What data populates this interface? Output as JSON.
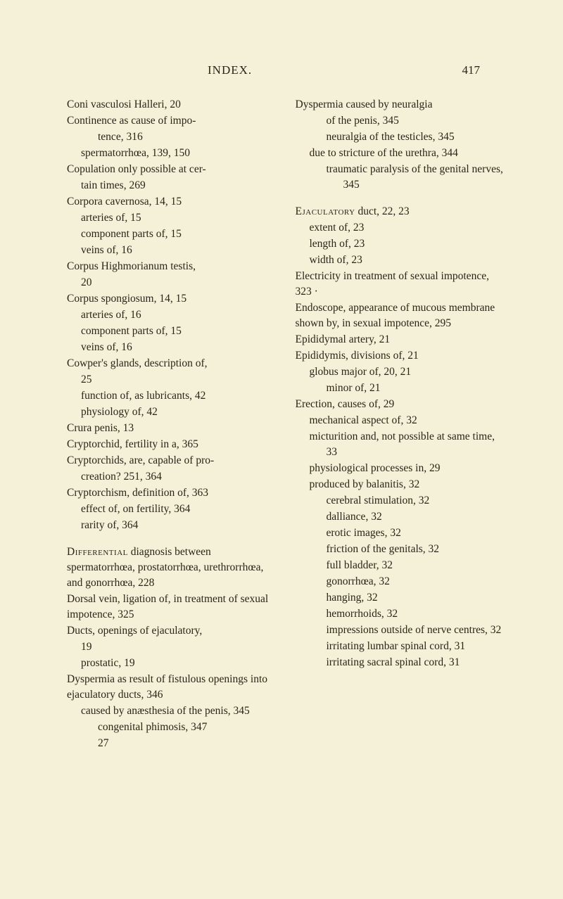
{
  "header": {
    "title": "INDEX.",
    "page": "417"
  },
  "left_column": [
    {
      "cls": "main",
      "text": "Coni vasculosi Halleri, 20"
    },
    {
      "cls": "main",
      "text": "Continence as cause of impo-"
    },
    {
      "cls": "sub2",
      "text": "tence, 316"
    },
    {
      "cls": "sub1",
      "text": "spermatorrhœa, 139, 150"
    },
    {
      "cls": "main",
      "text": "Copulation only possible at cer-"
    },
    {
      "cls": "sub1",
      "text": "tain times, 269"
    },
    {
      "cls": "main",
      "text": "Corpora cavernosa, 14, 15"
    },
    {
      "cls": "sub1",
      "text": "arteries of, 15"
    },
    {
      "cls": "sub1",
      "text": "component parts of, 15"
    },
    {
      "cls": "sub1",
      "text": "veins of, 16"
    },
    {
      "cls": "main",
      "text": "Corpus Highmorianum testis,"
    },
    {
      "cls": "sub1",
      "text": "20"
    },
    {
      "cls": "main",
      "text": "Corpus spongiosum, 14, 15"
    },
    {
      "cls": "sub1",
      "text": "arteries of, 16"
    },
    {
      "cls": "sub1",
      "text": "component parts of, 15"
    },
    {
      "cls": "sub1",
      "text": "veins of, 16"
    },
    {
      "cls": "main",
      "text": "Cowper's glands, description of,"
    },
    {
      "cls": "sub1",
      "text": "25"
    },
    {
      "cls": "sub1",
      "text": "function of, as lubricants, 42"
    },
    {
      "cls": "sub1",
      "text": "physiology of, 42"
    },
    {
      "cls": "main",
      "text": "Crura penis, 13"
    },
    {
      "cls": "main",
      "text": "Cryptorchid, fertility in a, 365"
    },
    {
      "cls": "main",
      "text": "Cryptorchids, are, capable of pro-"
    },
    {
      "cls": "sub1",
      "text": "creation? 251, 364"
    },
    {
      "cls": "main",
      "text": "Cryptorchism, definition of, 363"
    },
    {
      "cls": "sub1",
      "text": "effect of, on fertility, 364"
    },
    {
      "cls": "sub1",
      "text": "rarity of, 364"
    },
    {
      "cls": "section-gap",
      "text": ""
    },
    {
      "cls": "main",
      "text": "Differential diagnosis between spermatorrhœa, prostatorrhœa, urethrorrhœa, and gonorrhœa, 228",
      "smallcaps_first": "Differential"
    },
    {
      "cls": "main",
      "text": "Dorsal vein, ligation of, in treatment of sexual impotence, 325"
    },
    {
      "cls": "main",
      "text": "Ducts, openings of ejaculatory,"
    },
    {
      "cls": "sub1",
      "text": "19"
    },
    {
      "cls": "sub1",
      "text": "prostatic, 19"
    },
    {
      "cls": "main",
      "text": "Dyspermia as result of fistulous openings into ejaculatory ducts, 346"
    },
    {
      "cls": "sub1",
      "text": "caused by anæsthesia of the penis, 345"
    },
    {
      "cls": "sub2",
      "text": "congenital phimosis, 347"
    },
    {
      "cls": "end-col bold-num",
      "text": "27"
    }
  ],
  "right_column": [
    {
      "cls": "main",
      "text": "Dyspermia caused by neuralgia"
    },
    {
      "cls": "sub2",
      "text": "of the penis, 345"
    },
    {
      "cls": "sub2",
      "text": "neuralgia of the testicles, 345"
    },
    {
      "cls": "sub1",
      "text": "due to stricture of the urethra, 344"
    },
    {
      "cls": "sub2",
      "text": "traumatic paralysis of the genital nerves, 345"
    },
    {
      "cls": "section-gap",
      "text": ""
    },
    {
      "cls": "main",
      "text": "Ejaculatory duct, 22, 23",
      "smallcaps_first": "Ejaculatory"
    },
    {
      "cls": "sub1",
      "text": "extent of, 23"
    },
    {
      "cls": "sub1",
      "text": "length of, 23"
    },
    {
      "cls": "sub1",
      "text": "width of, 23"
    },
    {
      "cls": "main",
      "text": "Electricity in treatment of sexual impotence, 323 ·"
    },
    {
      "cls": "main",
      "text": "Endoscope, appearance of mucous membrane shown by, in sexual impotence, 295"
    },
    {
      "cls": "main",
      "text": "Epididymal artery, 21"
    },
    {
      "cls": "main",
      "text": "Epididymis, divisions of, 21"
    },
    {
      "cls": "sub1",
      "text": "globus major of, 20, 21"
    },
    {
      "cls": "sub2",
      "text": "minor of, 21"
    },
    {
      "cls": "main",
      "text": "Erection, causes of, 29"
    },
    {
      "cls": "sub1",
      "text": "mechanical aspect of, 32"
    },
    {
      "cls": "sub1",
      "text": "micturition and, not possible at same time, 33"
    },
    {
      "cls": "sub1",
      "text": "physiological processes in, 29"
    },
    {
      "cls": "sub1",
      "text": "produced by balanitis, 32"
    },
    {
      "cls": "sub2",
      "text": "cerebral stimulation, 32"
    },
    {
      "cls": "sub2",
      "text": "dalliance, 32"
    },
    {
      "cls": "sub2",
      "text": "erotic images, 32"
    },
    {
      "cls": "sub2",
      "text": "friction of the genitals, 32"
    },
    {
      "cls": "sub2",
      "text": "full bladder, 32"
    },
    {
      "cls": "sub2",
      "text": "gonorrhœa, 32"
    },
    {
      "cls": "sub2",
      "text": "hanging, 32"
    },
    {
      "cls": "sub2",
      "text": "hemorrhoids, 32"
    },
    {
      "cls": "sub2",
      "text": "impressions outside of nerve centres, 32"
    },
    {
      "cls": "sub2",
      "text": "irritating lumbar spinal cord, 31"
    },
    {
      "cls": "sub2",
      "text": "irritating sacral spinal cord, 31"
    }
  ]
}
